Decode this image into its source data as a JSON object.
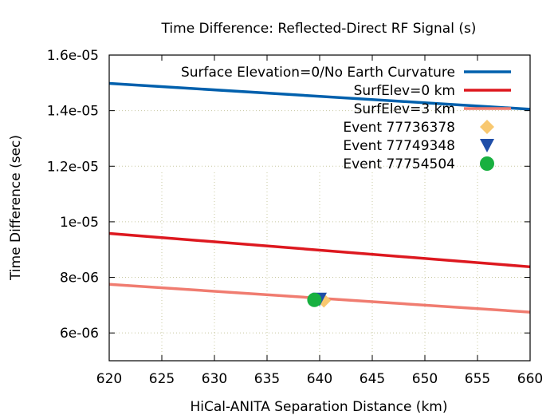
{
  "chart_data": {
    "type": "line",
    "title": "Time Difference: Reflected-Direct RF Signal (s)",
    "xlabel": "HiCal-ANITA Separation Distance (km)",
    "ylabel": "Time Difference (sec)",
    "xlim": [
      620,
      660
    ],
    "ylim": [
      5e-06,
      1.6e-05
    ],
    "grid": true,
    "legend_position": "top-right",
    "x_ticks": [
      {
        "value": 620,
        "label": "620"
      },
      {
        "value": 625,
        "label": "625"
      },
      {
        "value": 630,
        "label": "630"
      },
      {
        "value": 635,
        "label": "635"
      },
      {
        "value": 640,
        "label": "640"
      },
      {
        "value": 645,
        "label": "645"
      },
      {
        "value": 650,
        "label": "650"
      },
      {
        "value": 655,
        "label": "655"
      },
      {
        "value": 660,
        "label": "660"
      }
    ],
    "y_ticks": [
      {
        "value": 6e-06,
        "label": "6e-06"
      },
      {
        "value": 8e-06,
        "label": "8e-06"
      },
      {
        "value": 1e-05,
        "label": "1e-05"
      },
      {
        "value": 1.2e-05,
        "label": "1.2e-05"
      },
      {
        "value": 1.4e-05,
        "label": "1.4e-05"
      },
      {
        "value": 1.6e-05,
        "label": "1.6e-05"
      }
    ],
    "series": [
      {
        "name": "Surface Elevation=0/No Earth Curvature",
        "kind": "line",
        "color": "#0060ad",
        "x": [
          620,
          660
        ],
        "y": [
          1.498e-05,
          1.405e-05
        ]
      },
      {
        "name": "SurfElev=0 km",
        "kind": "line",
        "color": "#dd181f",
        "x": [
          620,
          660
        ],
        "y": [
          9.58e-06,
          8.38e-06
        ]
      },
      {
        "name": "SurfElev=3 km",
        "kind": "line",
        "color": "#f07c70",
        "x": [
          620,
          660
        ],
        "y": [
          7.75e-06,
          6.75e-06
        ]
      },
      {
        "name": "Event 77736378",
        "kind": "point",
        "marker": "diamond",
        "color": "#f8c870",
        "x": [
          640.4
        ],
        "y": [
          7.17e-06
        ]
      },
      {
        "name": "Event 77749348",
        "kind": "point",
        "marker": "triangle-down",
        "color": "#1f4ea8",
        "x": [
          640.0
        ],
        "y": [
          7.22e-06
        ]
      },
      {
        "name": "Event 77754504",
        "kind": "point",
        "marker": "circle",
        "color": "#18b040",
        "x": [
          639.5
        ],
        "y": [
          7.19e-06
        ]
      }
    ]
  }
}
